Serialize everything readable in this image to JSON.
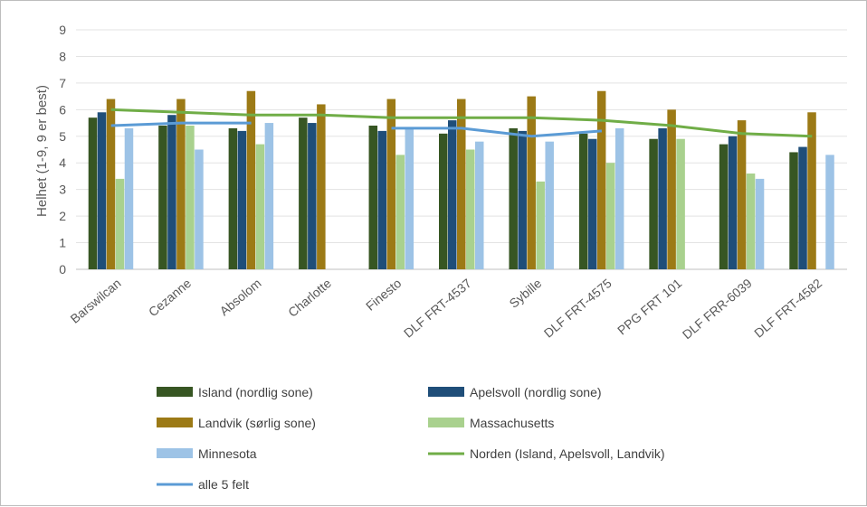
{
  "chart_data": {
    "type": "bar",
    "title": "",
    "ylabel": "Helhet (1-9, 9 er best)",
    "xlabel": "",
    "ylim": [
      0,
      9
    ],
    "yticks": [
      0,
      1,
      2,
      3,
      4,
      5,
      6,
      7,
      8,
      9
    ],
    "grid": true,
    "legend_position": "bottom",
    "categories": [
      "Barswilcan",
      "Cezanne",
      "Absolom",
      "Charlotte",
      "Finesto",
      "DLF FRT-4537",
      "Sybille",
      "DLF FRT-4575",
      "PPG FRT 101",
      "DLF FRR-6039",
      "DLF FRT-4582"
    ],
    "series": [
      {
        "name": "Island (nordlig sone)",
        "kind": "bar",
        "color": "#375623",
        "values": [
          5.7,
          5.4,
          5.3,
          5.7,
          5.4,
          5.1,
          5.3,
          5.1,
          4.9,
          4.7,
          4.4
        ]
      },
      {
        "name": "Apelsvoll (nordlig sone)",
        "kind": "bar",
        "color": "#1f4e79",
        "values": [
          5.9,
          5.8,
          5.2,
          5.5,
          5.2,
          5.6,
          5.2,
          4.9,
          5.3,
          5.0,
          4.6
        ]
      },
      {
        "name": "Landvik (sørlig sone)",
        "kind": "bar",
        "color": "#9c7a16",
        "values": [
          6.4,
          6.4,
          6.7,
          6.2,
          6.4,
          6.4,
          6.5,
          6.7,
          6.0,
          5.6,
          5.9
        ]
      },
      {
        "name": "Massachusetts",
        "kind": "bar",
        "color": "#a9d18e",
        "values": [
          3.4,
          5.4,
          4.7,
          null,
          4.3,
          4.5,
          3.3,
          4.0,
          4.9,
          3.6,
          null
        ]
      },
      {
        "name": "Minnesota",
        "kind": "bar",
        "color": "#9dc3e6",
        "values": [
          5.3,
          4.5,
          5.5,
          null,
          5.3,
          4.8,
          4.8,
          5.3,
          null,
          3.4,
          4.3
        ]
      },
      {
        "name": "Norden (Island, Apelsvoll, Landvik)",
        "kind": "line",
        "color": "#70ad47",
        "values": [
          6.0,
          5.9,
          5.8,
          5.8,
          5.7,
          5.7,
          5.7,
          5.6,
          5.4,
          5.1,
          5.0
        ]
      },
      {
        "name": "alle 5 felt",
        "kind": "line",
        "color": "#5b9bd5",
        "values": [
          5.4,
          5.5,
          5.5,
          null,
          5.3,
          5.3,
          5.0,
          5.2,
          null,
          null,
          null
        ]
      }
    ]
  }
}
